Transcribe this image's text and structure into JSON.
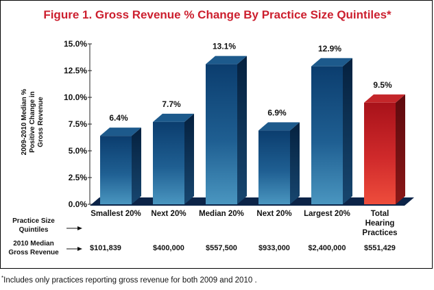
{
  "chart_data": {
    "type": "bar",
    "title": "Figure 1. Gross Revenue % Change By Practice Size Quintiles*",
    "ylabel": "2009-2010 Median % Positive Change in Gross Revenue",
    "ylim": [
      0,
      15
    ],
    "yticks": [
      "0.0%",
      "2.5%",
      "5.0%",
      "7.5%",
      "10.0%",
      "12.5%",
      "15.0%"
    ],
    "categories": [
      "Smallest 20%",
      "Next 20%",
      "Median 20%",
      "Next 20%",
      "Largest 20%",
      "Total Hearing Practices"
    ],
    "values": [
      6.4,
      7.7,
      13.1,
      6.9,
      12.9,
      9.5
    ],
    "value_labels": [
      "6.4%",
      "7.7%",
      "13.1%",
      "6.9%",
      "12.9%",
      "9.5%"
    ],
    "grid": false,
    "style": "3d-bar"
  },
  "rows": {
    "practice_size_label": "Practice Size Quintiles",
    "revenue_label": "2010 Median Gross Revenue",
    "revenue_values": [
      "$101,839",
      "$400,000",
      "$557,500",
      "$933,000",
      "$2,400,000",
      "$551,429"
    ]
  },
  "footnote": {
    "star": "*",
    "text": "Includes only practices reporting gross revenue for both 2009 and 2010 ."
  },
  "colors": {
    "title": "#cc1f2e",
    "bar_blue_front_top": "#0b3d6e",
    "bar_blue_front_bottom": "#3f8db8",
    "bar_red_front_top": "#b0151b",
    "bar_red_front_bottom": "#e8453a",
    "floor": "#0c2448"
  }
}
